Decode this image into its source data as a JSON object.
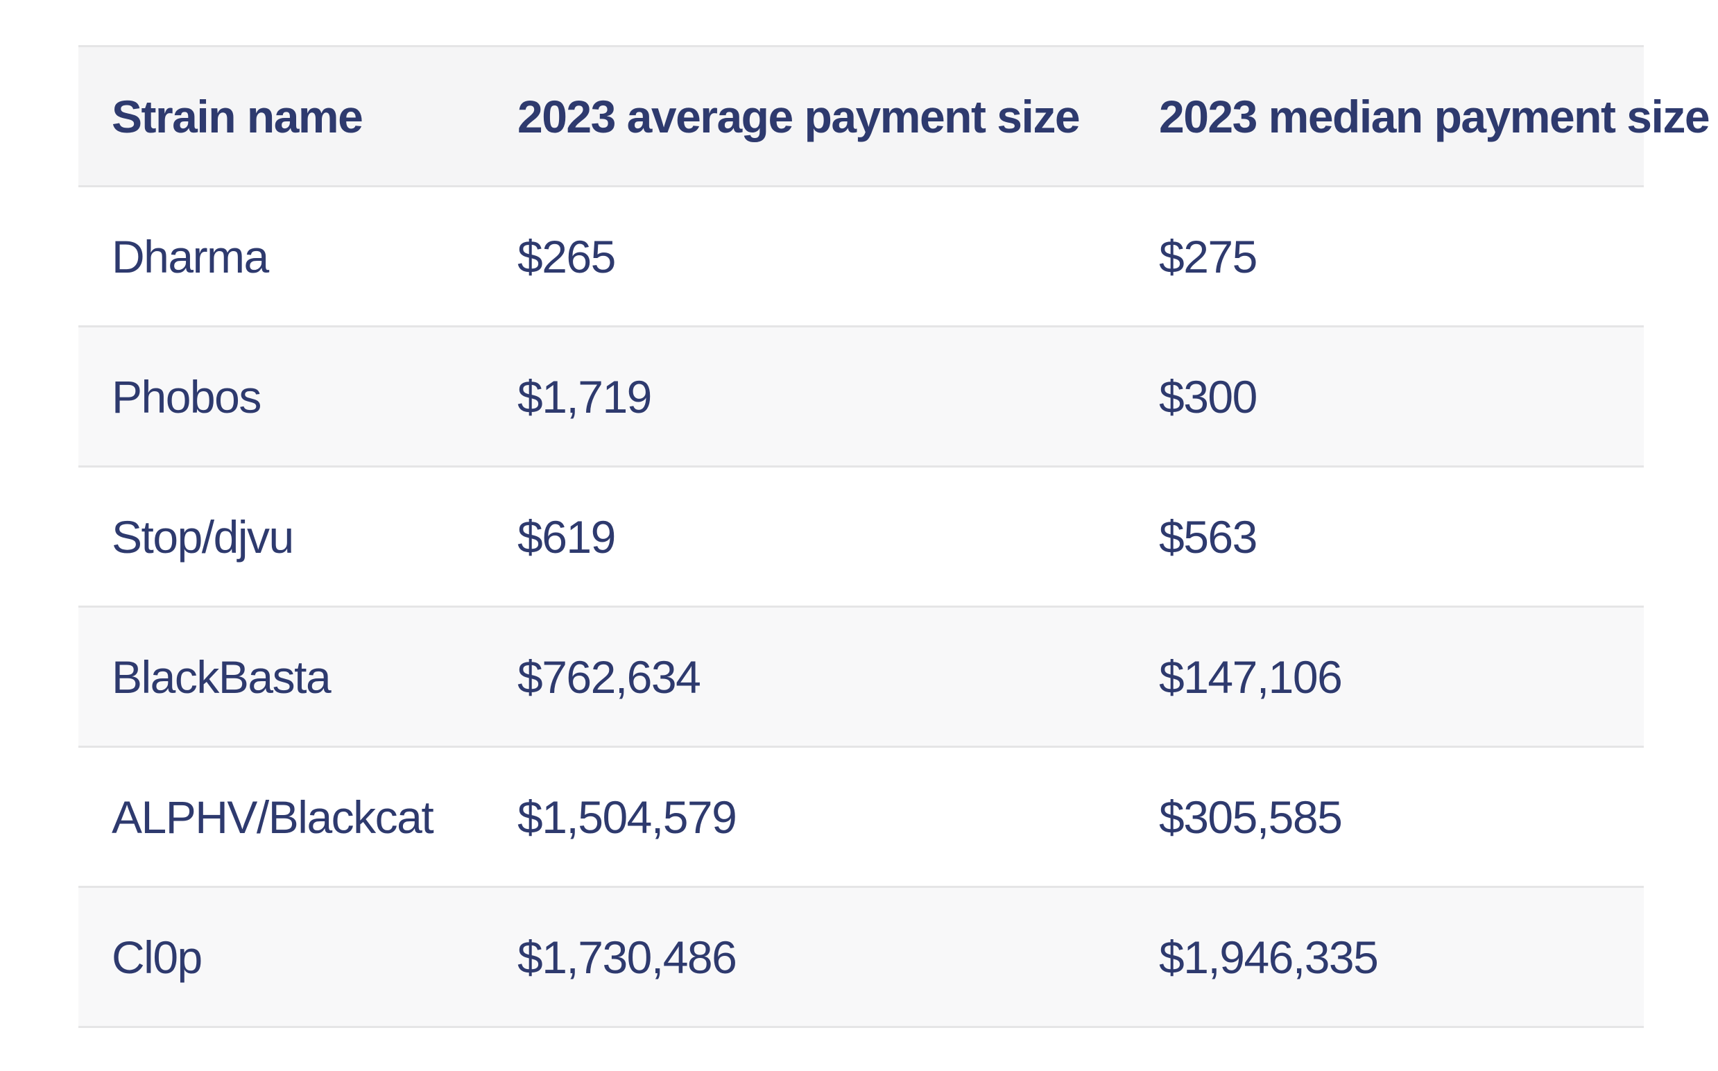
{
  "chart_data": {
    "type": "table",
    "columns": [
      "Strain name",
      "2023 average payment size",
      "2023 median payment size"
    ],
    "rows": [
      [
        "Dharma",
        "$265",
        "$275"
      ],
      [
        "Phobos",
        "$1,719",
        "$300"
      ],
      [
        "Stop/djvu",
        "$619",
        "$563"
      ],
      [
        "BlackBasta",
        "$762,634",
        "$147,106"
      ],
      [
        "ALPHV/Blackcat",
        "$1,504,579",
        "$305,585"
      ],
      [
        "Cl0p",
        "$1,730,486",
        "$1,946,335"
      ]
    ]
  },
  "colors": {
    "text": "#2e3a6e",
    "header_bg": "#f5f5f6",
    "stripe_bg": "#f8f8f9",
    "border": "#e5e5e6",
    "page_bg": "#ffffff"
  }
}
